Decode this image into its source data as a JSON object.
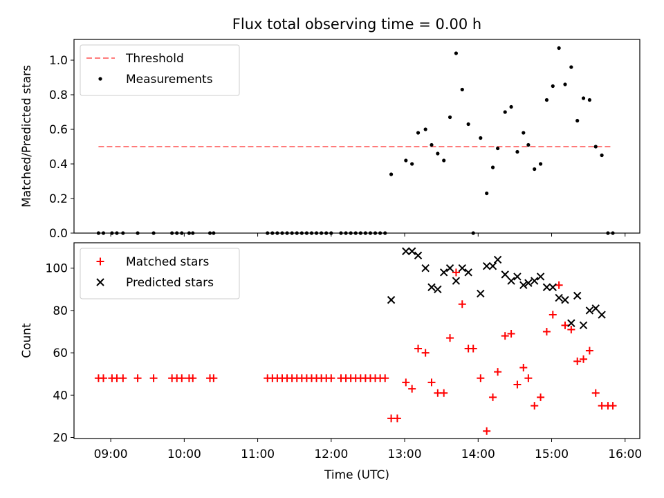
{
  "chart_data": {
    "title": "Flux total observing time = 0.00 h",
    "xlabel": "Time (UTC)",
    "x_ticks": [
      "09:00",
      "10:00",
      "11:00",
      "12:00",
      "13:00",
      "14:00",
      "15:00",
      "16:00"
    ],
    "xlim": [
      "08:30",
      "16:12"
    ],
    "colors": {
      "threshold": "#ff7b7b",
      "measurements": "#000000",
      "matched": "#ff0000",
      "predicted": "#000000"
    },
    "charts": [
      {
        "type": "scatter",
        "ylabel": "Matched/Predicted stars",
        "ylim": [
          0,
          1.12
        ],
        "y_ticks": [
          "0.0",
          "0.2",
          "0.4",
          "0.6",
          "0.8",
          "1.0"
        ],
        "legend_position": "top-left",
        "threshold": {
          "name": "Threshold",
          "y": 0.5,
          "x_range": [
            "08:50",
            "15:50"
          ],
          "style": "dashed"
        },
        "series": [
          {
            "name": "Measurements",
            "marker": "dot",
            "points": [
              [
                "08:50",
                0
              ],
              [
                "08:54",
                0
              ],
              [
                "09:01",
                0
              ],
              [
                "09:05",
                0
              ],
              [
                "09:10",
                0
              ],
              [
                "09:22",
                0
              ],
              [
                "09:35",
                0
              ],
              [
                "09:50",
                0
              ],
              [
                "09:54",
                0
              ],
              [
                "09:58",
                0
              ],
              [
                "10:04",
                0
              ],
              [
                "10:07",
                0
              ],
              [
                "10:21",
                0
              ],
              [
                "10:24",
                0
              ],
              [
                "11:08",
                0
              ],
              [
                "11:12",
                0
              ],
              [
                "11:16",
                0
              ],
              [
                "11:20",
                0
              ],
              [
                "11:24",
                0
              ],
              [
                "11:28",
                0
              ],
              [
                "11:32",
                0
              ],
              [
                "11:36",
                0
              ],
              [
                "11:40",
                0
              ],
              [
                "11:44",
                0
              ],
              [
                "11:48",
                0
              ],
              [
                "11:52",
                0
              ],
              [
                "11:56",
                0
              ],
              [
                "12:00",
                0
              ],
              [
                "12:08",
                0
              ],
              [
                "12:12",
                0
              ],
              [
                "12:16",
                0
              ],
              [
                "12:20",
                0
              ],
              [
                "12:24",
                0
              ],
              [
                "12:28",
                0
              ],
              [
                "12:32",
                0
              ],
              [
                "12:36",
                0
              ],
              [
                "12:40",
                0
              ],
              [
                "12:44",
                0
              ],
              [
                "12:49",
                0.34
              ],
              [
                "13:01",
                0.42
              ],
              [
                "13:06",
                0.4
              ],
              [
                "13:11",
                0.58
              ],
              [
                "13:17",
                0.6
              ],
              [
                "13:22",
                0.51
              ],
              [
                "13:27",
                0.46
              ],
              [
                "13:32",
                0.42
              ],
              [
                "13:37",
                0.67
              ],
              [
                "13:42",
                1.04
              ],
              [
                "13:47",
                0.83
              ],
              [
                "13:52",
                0.63
              ],
              [
                "13:56",
                0.0
              ],
              [
                "14:02",
                0.55
              ],
              [
                "14:07",
                0.23
              ],
              [
                "14:12",
                0.38
              ],
              [
                "14:16",
                0.49
              ],
              [
                "14:22",
                0.7
              ],
              [
                "14:27",
                0.73
              ],
              [
                "14:32",
                0.47
              ],
              [
                "14:37",
                0.58
              ],
              [
                "14:41",
                0.51
              ],
              [
                "14:46",
                0.37
              ],
              [
                "14:51",
                0.4
              ],
              [
                "14:56",
                0.77
              ],
              [
                "15:01",
                0.85
              ],
              [
                "15:06",
                1.07
              ],
              [
                "15:11",
                0.86
              ],
              [
                "15:16",
                0.96
              ],
              [
                "15:21",
                0.65
              ],
              [
                "15:26",
                0.78
              ],
              [
                "15:31",
                0.77
              ],
              [
                "15:36",
                0.5
              ],
              [
                "15:41",
                0.45
              ],
              [
                "15:46",
                0.0
              ],
              [
                "15:50",
                0.0
              ]
            ]
          }
        ]
      },
      {
        "type": "scatter",
        "ylabel": "Count",
        "ylim": [
          19.5,
          112
        ],
        "y_ticks": [
          "20",
          "40",
          "60",
          "80",
          "100"
        ],
        "legend_position": "top-left",
        "series": [
          {
            "name": "Matched stars",
            "marker": "plus",
            "points": [
              [
                "08:50",
                48
              ],
              [
                "08:54",
                48
              ],
              [
                "09:01",
                48
              ],
              [
                "09:05",
                48
              ],
              [
                "09:10",
                48
              ],
              [
                "09:22",
                48
              ],
              [
                "09:35",
                48
              ],
              [
                "09:50",
                48
              ],
              [
                "09:54",
                48
              ],
              [
                "09:58",
                48
              ],
              [
                "10:04",
                48
              ],
              [
                "10:07",
                48
              ],
              [
                "10:21",
                48
              ],
              [
                "10:24",
                48
              ],
              [
                "11:08",
                48
              ],
              [
                "11:12",
                48
              ],
              [
                "11:16",
                48
              ],
              [
                "11:20",
                48
              ],
              [
                "11:24",
                48
              ],
              [
                "11:28",
                48
              ],
              [
                "11:32",
                48
              ],
              [
                "11:36",
                48
              ],
              [
                "11:40",
                48
              ],
              [
                "11:44",
                48
              ],
              [
                "11:48",
                48
              ],
              [
                "11:52",
                48
              ],
              [
                "11:56",
                48
              ],
              [
                "12:00",
                48
              ],
              [
                "12:08",
                48
              ],
              [
                "12:12",
                48
              ],
              [
                "12:16",
                48
              ],
              [
                "12:20",
                48
              ],
              [
                "12:24",
                48
              ],
              [
                "12:28",
                48
              ],
              [
                "12:32",
                48
              ],
              [
                "12:36",
                48
              ],
              [
                "12:40",
                48
              ],
              [
                "12:44",
                48
              ],
              [
                "12:49",
                29
              ],
              [
                "12:54",
                29
              ],
              [
                "13:01",
                46
              ],
              [
                "13:06",
                43
              ],
              [
                "13:11",
                62
              ],
              [
                "13:17",
                60
              ],
              [
                "13:22",
                46
              ],
              [
                "13:27",
                41
              ],
              [
                "13:32",
                41
              ],
              [
                "13:37",
                67
              ],
              [
                "13:42",
                98
              ],
              [
                "13:47",
                83
              ],
              [
                "13:52",
                62
              ],
              [
                "13:56",
                62
              ],
              [
                "14:02",
                48
              ],
              [
                "14:07",
                23
              ],
              [
                "14:12",
                39
              ],
              [
                "14:16",
                51
              ],
              [
                "14:22",
                68
              ],
              [
                "14:27",
                69
              ],
              [
                "14:32",
                45
              ],
              [
                "14:37",
                53
              ],
              [
                "14:41",
                48
              ],
              [
                "14:46",
                35
              ],
              [
                "14:51",
                39
              ],
              [
                "14:56",
                70
              ],
              [
                "15:01",
                78
              ],
              [
                "15:06",
                92
              ],
              [
                "15:11",
                73
              ],
              [
                "15:16",
                71
              ],
              [
                "15:21",
                56
              ],
              [
                "15:26",
                57
              ],
              [
                "15:31",
                61
              ],
              [
                "15:36",
                41
              ],
              [
                "15:41",
                35
              ],
              [
                "15:46",
                35
              ],
              [
                "15:50",
                35
              ]
            ]
          },
          {
            "name": "Predicted stars",
            "marker": "x",
            "points": [
              [
                "12:49",
                85
              ],
              [
                "13:01",
                108
              ],
              [
                "13:06",
                108
              ],
              [
                "13:11",
                106
              ],
              [
                "13:17",
                100
              ],
              [
                "13:22",
                91
              ],
              [
                "13:27",
                90
              ],
              [
                "13:32",
                98
              ],
              [
                "13:37",
                100
              ],
              [
                "13:42",
                94
              ],
              [
                "13:47",
                100
              ],
              [
                "13:52",
                98
              ],
              [
                "14:02",
                88
              ],
              [
                "14:07",
                101
              ],
              [
                "14:12",
                101
              ],
              [
                "14:16",
                104
              ],
              [
                "14:22",
                97
              ],
              [
                "14:27",
                94
              ],
              [
                "14:32",
                96
              ],
              [
                "14:37",
                92
              ],
              [
                "14:41",
                93
              ],
              [
                "14:46",
                94
              ],
              [
                "14:51",
                96
              ],
              [
                "14:56",
                91
              ],
              [
                "15:01",
                91
              ],
              [
                "15:06",
                86
              ],
              [
                "15:11",
                85
              ],
              [
                "15:16",
                74
              ],
              [
                "15:21",
                87
              ],
              [
                "15:26",
                73
              ],
              [
                "15:31",
                80
              ],
              [
                "15:36",
                81
              ],
              [
                "15:41",
                78
              ]
            ]
          }
        ]
      }
    ]
  }
}
